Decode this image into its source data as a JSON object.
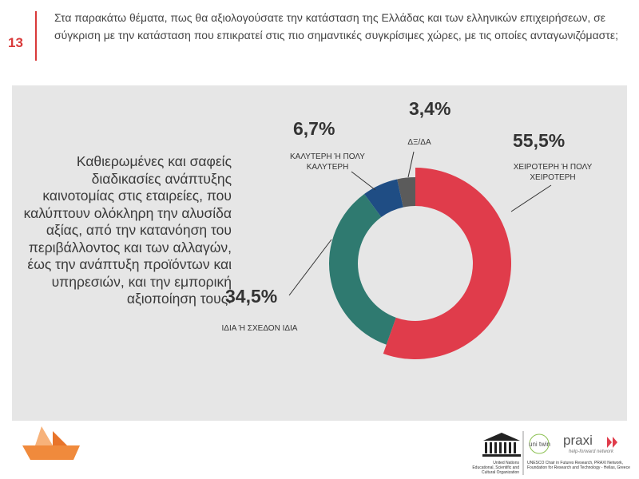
{
  "header": {
    "number": "13",
    "question": "Στα παρακάτω θέματα, πως θα αξιολογούσατε την κατάσταση της Ελλάδας και των ελληνικών επιχειρήσεων, σε σύγκριση με την κατάσταση που επικρατεί στις πιο σημαντικές συγκρίσιμες χώρες, με τις οποίες ανταγωνιζόμαστε;"
  },
  "panel_text": "Καθιερωμένες και σαφείς διαδικασίες ανάπτυξης καινοτομίας στις εταιρείες, που καλύπτουν ολόκληρη την αλυσίδα αξίας, από την κατανόηση του περιβάλλοντος και των αλλαγών, έως την ανάπτυξη προϊόντων και υπηρεσιών, και την εμπορική αξιοποίηση τους.",
  "chart_data": {
    "type": "donut",
    "categories": [
      "ΧΕΙΡΟΤΕΡΗ Ή ΠΟΛΥ ΧΕΙΡΟΤΕΡΗ",
      "ΙΔΙΑ Ή ΣΧΕΔΟΝ ΙΔΙΑ",
      "ΚΑΛΥΤΕΡΗ Ή ΠΟΛΥ ΚΑΛΥΤΕΡΗ",
      "ΔΞ/ΔΑ"
    ],
    "values": [
      55.5,
      34.5,
      6.7,
      3.4
    ],
    "value_labels": [
      "55,5%",
      "34,5%",
      "6,7%",
      "3,4%"
    ],
    "colors": [
      "#e03c4b",
      "#2f7a70",
      "#1f4d84",
      "#5b5b5b"
    ]
  },
  "footer": {
    "unesco": "United Nations Educational, Scientific and Cultural Organization",
    "unitwin": "uni twin",
    "chair": "UNESCO Chair in Futures Research, PRAXI Network, Foundation for Research and Technology - Hellas, Greece",
    "praxi": "praxi",
    "praxi_tagline": "help-forward network"
  }
}
